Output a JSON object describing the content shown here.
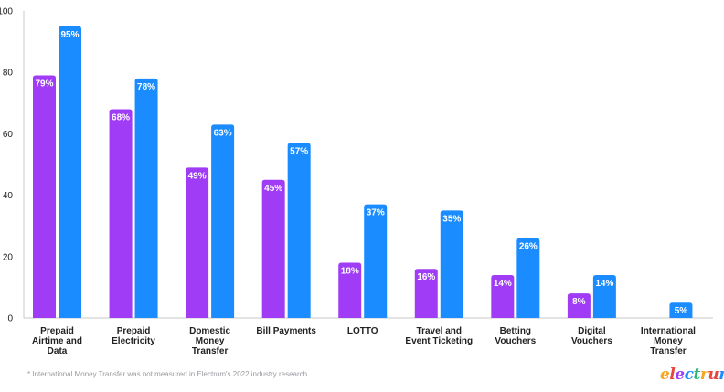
{
  "chart_data": {
    "type": "bar",
    "categories": [
      [
        "Prepaid",
        "Airtime and",
        "Data"
      ],
      [
        "Prepaid",
        "Electricity"
      ],
      [
        "Domestic",
        "Money",
        "Transfer"
      ],
      [
        "Bill Payments"
      ],
      [
        "LOTTO"
      ],
      [
        "Travel and",
        "Event Ticketing"
      ],
      [
        "Betting",
        "Vouchers"
      ],
      [
        "Digital",
        "Vouchers"
      ],
      [
        "International",
        "Money",
        "Transfer"
      ]
    ],
    "series": [
      {
        "values": [
          79,
          68,
          49,
          45,
          18,
          16,
          14,
          8,
          null
        ],
        "labels": [
          "79%",
          "68%",
          "49%",
          "45%",
          "18%",
          "16%",
          "14%",
          "8%",
          ""
        ],
        "color": "#a03cf5"
      },
      {
        "values": [
          95,
          78,
          63,
          57,
          37,
          35,
          26,
          14,
          5
        ],
        "labels": [
          "95%",
          "78%",
          "63%",
          "57%",
          "37%",
          "35%",
          "26%",
          "14%",
          "5%"
        ],
        "color": "#1a8cff"
      }
    ],
    "ylim": [
      0,
      100
    ],
    "yticks": [
      "0",
      "20",
      "40",
      "60",
      "80",
      "100"
    ],
    "grid": false
  },
  "footnote": "* International Money Transfer was not measured in Electrum's 2022 industry research",
  "logo": {
    "letters": [
      "e",
      "l",
      "e",
      "c",
      "t",
      "r",
      "u",
      "m"
    ],
    "colors": [
      "#f5a623",
      "#e8453c",
      "#a03cf5",
      "#1a8cff",
      "#2bb673",
      "#f5a623",
      "#e8453c",
      "#1a8cff"
    ]
  }
}
